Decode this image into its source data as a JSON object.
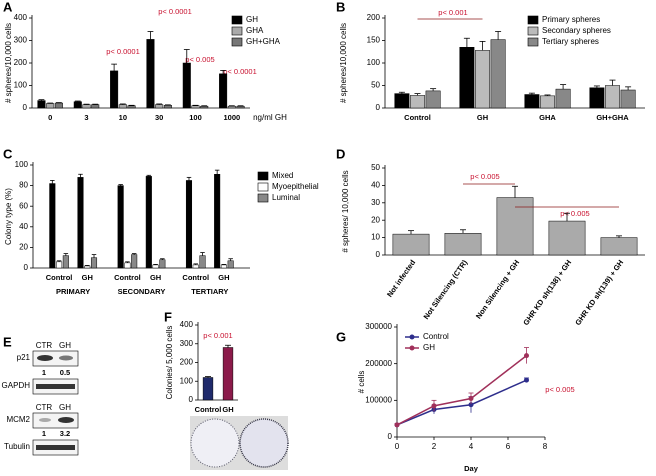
{
  "chart_data": [
    {
      "type": "bar",
      "panel": "A",
      "y_label": "# spheres/10,000 cells",
      "x_label": "ng/ml GH",
      "categories": [
        "0",
        "3",
        "10",
        "30",
        "100",
        "1000"
      ],
      "series": [
        {
          "name": "GH",
          "color": "#000000",
          "values": [
            33,
            28,
            165,
            305,
            200,
            152
          ],
          "errors": [
            4,
            3,
            30,
            35,
            60,
            15
          ]
        },
        {
          "name": "GHA",
          "color": "#aaaaaa",
          "values": [
            20,
            15,
            15,
            15,
            10,
            8
          ],
          "errors": [
            2,
            2,
            3,
            3,
            2,
            2
          ]
        },
        {
          "name": "GH+GHA",
          "color": "#777777",
          "values": [
            22,
            15,
            10,
            12,
            8,
            8
          ],
          "errors": [
            2,
            2,
            2,
            2,
            2,
            2
          ]
        }
      ],
      "ylim": [
        0,
        400
      ],
      "yticks": [
        0,
        100,
        200,
        300,
        400
      ],
      "legend": "upper right",
      "annotations": [
        "p< 0.0001",
        "p< 0.0001",
        "p< 0.005",
        "p< 0.0001"
      ]
    },
    {
      "type": "bar",
      "panel": "B",
      "y_label": "# spheres/10,000 cells",
      "categories": [
        "Control",
        "GH",
        "GHA",
        "GH+GHA"
      ],
      "series": [
        {
          "name": "Primary spheres",
          "color": "#000000",
          "values": [
            32,
            135,
            30,
            45
          ],
          "errors": [
            3,
            20,
            3,
            4
          ]
        },
        {
          "name": "Secondary spheres",
          "color": "#bbbbbb",
          "values": [
            28,
            128,
            27,
            50
          ],
          "errors": [
            4,
            20,
            2,
            12
          ]
        },
        {
          "name": "Tertiary spheres",
          "color": "#888888",
          "values": [
            38,
            152,
            42,
            40
          ],
          "errors": [
            5,
            18,
            10,
            7
          ]
        }
      ],
      "ylim": [
        0,
        200
      ],
      "yticks": [
        0,
        50,
        100,
        150,
        200
      ],
      "legend": "upper right",
      "annotations": [
        "p< 0.001"
      ]
    },
    {
      "type": "bar",
      "panel": "C",
      "y_label": "Colony type (%)",
      "categories": [
        "Control",
        "GH",
        "Control",
        "GH",
        "Control",
        "GH"
      ],
      "groups": [
        "PRIMARY",
        "SECONDARY",
        "TERTIARY"
      ],
      "series": [
        {
          "name": "Mixed",
          "color": "#000000",
          "values": [
            82,
            88,
            80,
            89,
            85,
            91
          ],
          "errors": [
            3,
            3,
            1,
            1,
            3,
            4
          ]
        },
        {
          "name": "Myoepithelial",
          "color": "#ffffff",
          "values": [
            6,
            2,
            5,
            3,
            3,
            3
          ],
          "errors": [
            1,
            0.5,
            1,
            0.5,
            1,
            0.5
          ]
        },
        {
          "name": "Luminal",
          "color": "#888888",
          "values": [
            12,
            10,
            13,
            8,
            12,
            7
          ],
          "errors": [
            2,
            3,
            1,
            1,
            3,
            2
          ]
        }
      ],
      "ylim": [
        0,
        100
      ],
      "yticks": [
        0,
        20,
        40,
        60,
        80,
        100
      ],
      "legend": "upper right"
    },
    {
      "type": "bar",
      "panel": "D",
      "y_label": "# spheres/ 10,000 cells",
      "categories": [
        "Not infected",
        "Not Silencing (CTR)",
        "Non Silencing + GH",
        "GHR KD sh(138) + GH",
        "GHR KD sh(139) + GH"
      ],
      "values": [
        12,
        12.5,
        33,
        19.5,
        10
      ],
      "errors": [
        2,
        2,
        6.5,
        4.5,
        1
      ],
      "color": "#aaaaaa",
      "ylim": [
        0,
        50
      ],
      "yticks": [
        0,
        10,
        20,
        30,
        40,
        50
      ],
      "annotations": [
        "p< 0.005",
        "p< 0.005"
      ]
    },
    {
      "type": "bar",
      "panel": "F",
      "y_label": "Colonies/ 5,000 cells",
      "categories": [
        "Control",
        "GH"
      ],
      "values": [
        120,
        280
      ],
      "errors": [
        5,
        12
      ],
      "colors": [
        "#1f2a6b",
        "#8b1a4a"
      ],
      "ylim": [
        0,
        400
      ],
      "yticks": [
        0,
        100,
        200,
        300,
        400
      ],
      "annotations": [
        "p< 0.001"
      ]
    },
    {
      "type": "line",
      "panel": "G",
      "y_label": "# cells",
      "x_label": "Day",
      "x": [
        0,
        2,
        4,
        7
      ],
      "series": [
        {
          "name": "Control",
          "color": "#2e2e8c",
          "values": [
            33000,
            75000,
            88000,
            155000
          ],
          "errors": [
            3000,
            12000,
            22000,
            6000
          ]
        },
        {
          "name": "GH",
          "color": "#a0305a",
          "values": [
            33000,
            85000,
            105000,
            222000
          ],
          "errors": [
            3000,
            15000,
            15000,
            22000
          ]
        }
      ],
      "xlim": [
        0,
        8
      ],
      "xticks": [
        0,
        2,
        4,
        6,
        8
      ],
      "ylim": [
        0,
        300000
      ],
      "yticks": [
        0,
        100000,
        200000,
        300000
      ],
      "legend": "upper left",
      "annotations": [
        "p< 0.005"
      ]
    }
  ],
  "blots": {
    "panel": "E",
    "top": {
      "lanes": [
        "CTR",
        "GH"
      ],
      "protein": "p21",
      "ratios": [
        1,
        0.5
      ],
      "control": "GAPDH"
    },
    "bottom": {
      "lanes": [
        "CTR",
        "GH"
      ],
      "protein": "MCM2",
      "ratios": [
        1,
        3.2
      ],
      "control": "Tubulin"
    }
  }
}
